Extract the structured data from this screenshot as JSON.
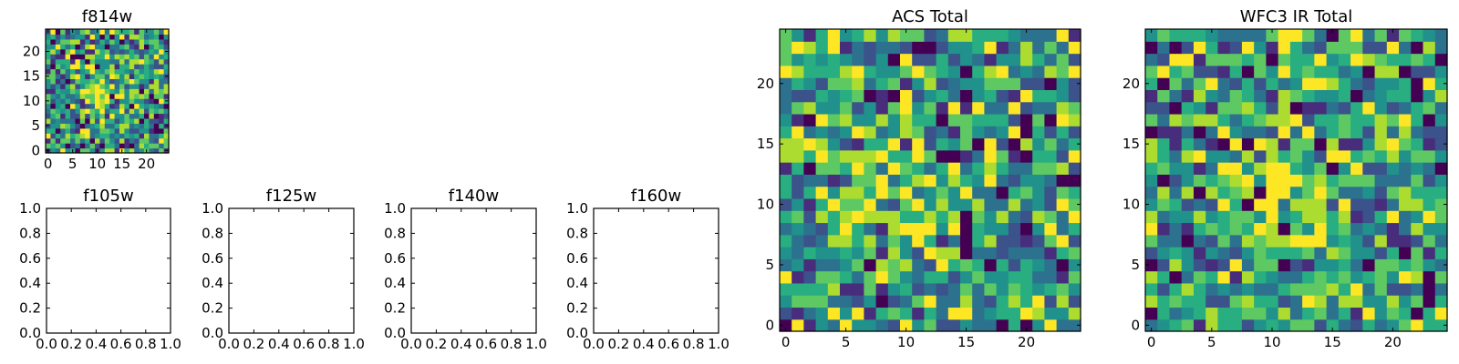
{
  "chart_data": [
    {
      "type": "heatmap",
      "title": "f814w",
      "xticks": [
        "0",
        "5",
        "10",
        "15",
        "20"
      ],
      "yticks": [
        "0",
        "5",
        "10",
        "15",
        "20"
      ],
      "xlim": [
        -0.5,
        24.5
      ],
      "ylim": [
        -0.5,
        24.5
      ],
      "seed": 814,
      "colormap": "viridis"
    },
    {
      "type": "empty",
      "title": "f105w",
      "xticks": [
        "0.0",
        "0.2",
        "0.4",
        "0.6",
        "0.8",
        "1.0"
      ],
      "yticks": [
        "0.0",
        "0.2",
        "0.4",
        "0.6",
        "0.8",
        "1.0"
      ],
      "xlim": [
        0,
        1
      ],
      "ylim": [
        0,
        1
      ]
    },
    {
      "type": "empty",
      "title": "f125w",
      "xticks": [
        "0.0",
        "0.2",
        "0.4",
        "0.6",
        "0.8",
        "1.0"
      ],
      "yticks": [
        "0.0",
        "0.2",
        "0.4",
        "0.6",
        "0.8",
        "1.0"
      ],
      "xlim": [
        0,
        1
      ],
      "ylim": [
        0,
        1
      ]
    },
    {
      "type": "empty",
      "title": "f140w",
      "xticks": [
        "0.0",
        "0.2",
        "0.4",
        "0.6",
        "0.8",
        "1.0"
      ],
      "yticks": [
        "0.0",
        "0.2",
        "0.4",
        "0.6",
        "0.8",
        "1.0"
      ],
      "xlim": [
        0,
        1
      ],
      "ylim": [
        0,
        1
      ]
    },
    {
      "type": "empty",
      "title": "f160w",
      "xticks": [
        "0.0",
        "0.2",
        "0.4",
        "0.6",
        "0.8",
        "1.0"
      ],
      "yticks": [
        "0.0",
        "0.2",
        "0.4",
        "0.6",
        "0.8",
        "1.0"
      ],
      "xlim": [
        0,
        1
      ],
      "ylim": [
        0,
        1
      ]
    },
    {
      "type": "heatmap",
      "title": "ACS Total",
      "xticks": [
        "0",
        "5",
        "10",
        "15",
        "20"
      ],
      "yticks": [
        "0",
        "5",
        "10",
        "15",
        "20"
      ],
      "xlim": [
        -0.5,
        24.5
      ],
      "ylim": [
        -0.5,
        24.5
      ],
      "seed": 2203,
      "colormap": "viridis"
    },
    {
      "type": "heatmap",
      "title": "WFC3 IR Total",
      "xticks": [
        "0",
        "5",
        "10",
        "15",
        "20"
      ],
      "yticks": [
        "0",
        "5",
        "10",
        "15",
        "20"
      ],
      "xlim": [
        -0.5,
        24.5
      ],
      "ylim": [
        -0.5,
        24.5
      ],
      "seed": 3301,
      "colormap": "viridis"
    }
  ],
  "colors": {
    "viridis": [
      "#440154",
      "#472d7b",
      "#3b528b",
      "#2c728e",
      "#21918c",
      "#28ae80",
      "#5ec962",
      "#addc30",
      "#fde725"
    ],
    "frame": "#000000",
    "background": "#ffffff"
  }
}
